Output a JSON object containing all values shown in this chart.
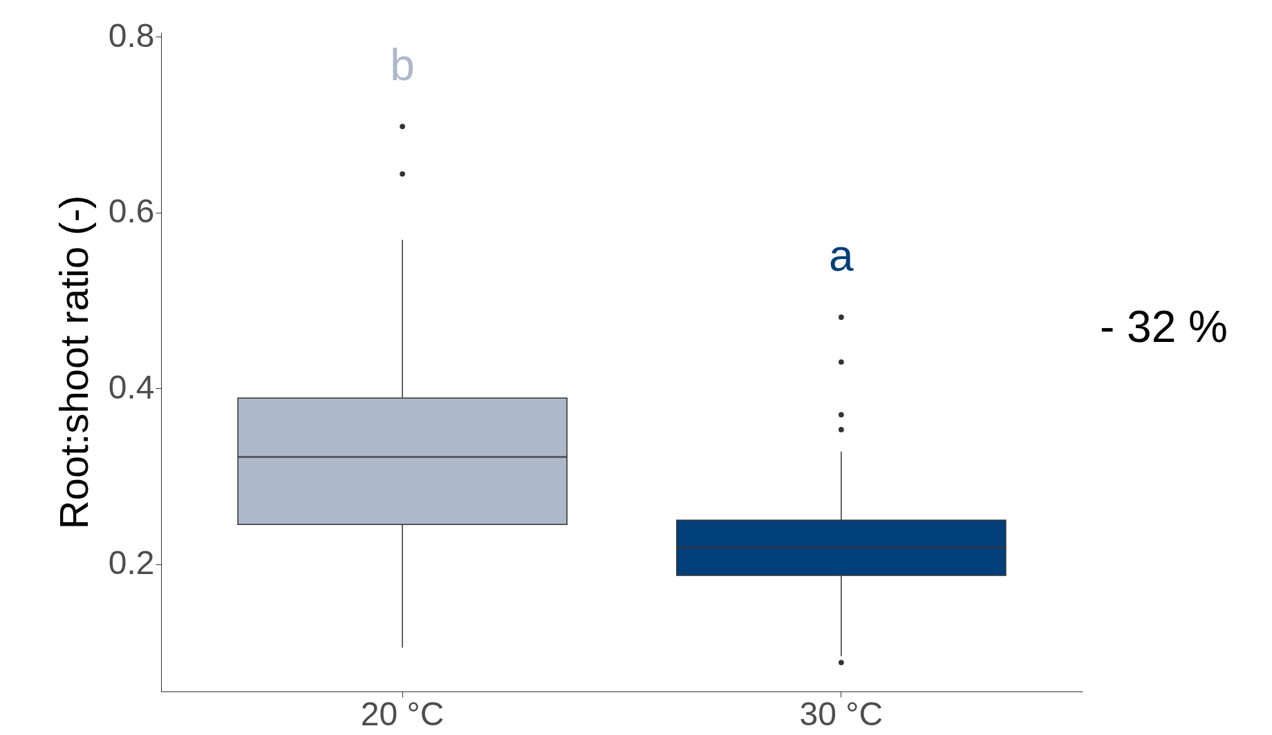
{
  "chart_data": {
    "type": "box",
    "ylabel": "Root:shoot ratio (-)",
    "categories": [
      "20 °C",
      "30 °C"
    ],
    "colors": [
      "#adb8ca",
      "#003f7a"
    ],
    "boxes": [
      {
        "low": 0.105,
        "q1": 0.245,
        "median": 0.322,
        "q3": 0.389,
        "high": 0.569,
        "outliers": [
          0.698,
          0.644
        ]
      },
      {
        "low": 0.095,
        "q1": 0.187,
        "median": 0.219,
        "q3": 0.25,
        "high": 0.328,
        "outliers": [
          0.481,
          0.43,
          0.37,
          0.353,
          0.088
        ]
      }
    ],
    "ylim": [
      0.055,
      0.805
    ],
    "yticks": [
      0.2,
      0.4,
      0.6,
      0.8
    ],
    "grid": false,
    "annotations": [
      "b",
      "a",
      "- 32 %"
    ]
  }
}
